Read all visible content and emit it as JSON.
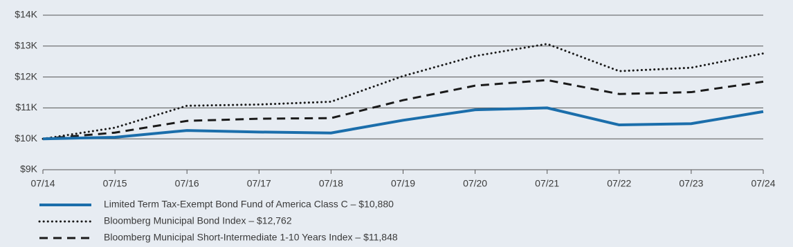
{
  "chart_data": {
    "type": "line",
    "categories": [
      "07/14",
      "07/15",
      "07/16",
      "07/17",
      "07/18",
      "07/19",
      "07/20",
      "07/21",
      "07/22",
      "07/23",
      "07/24"
    ],
    "series": [
      {
        "name": "Limited Term Tax-Exempt Bond Fund of America Class C – $10,880",
        "color": "#1b6eab",
        "dash": "solid",
        "values": [
          10000,
          10050,
          10270,
          10220,
          10190,
          10600,
          10940,
          11000,
          10450,
          10490,
          10880
        ]
      },
      {
        "name": "Bloomberg Municipal Bond Index – $12,762",
        "color": "#1a1a1a",
        "dash": "dotted",
        "values": [
          10000,
          10360,
          11070,
          11110,
          11200,
          12030,
          12680,
          13070,
          12190,
          12300,
          12762
        ]
      },
      {
        "name": "Bloomberg Municipal Short-Intermediate 1-10 Years Index – $11,848",
        "color": "#1a1a1a",
        "dash": "dashed",
        "values": [
          10000,
          10200,
          10580,
          10650,
          10670,
          11250,
          11720,
          11900,
          11450,
          11510,
          11848
        ]
      }
    ],
    "ylim": [
      9000,
      14000
    ],
    "yticks": [
      {
        "value": 9000,
        "label": "$9K"
      },
      {
        "value": 10000,
        "label": "$10K"
      },
      {
        "value": 11000,
        "label": "$11K"
      },
      {
        "value": 12000,
        "label": "$12K"
      },
      {
        "value": 13000,
        "label": "$13K"
      },
      {
        "value": 14000,
        "label": "$14K"
      }
    ],
    "grid": true
  }
}
